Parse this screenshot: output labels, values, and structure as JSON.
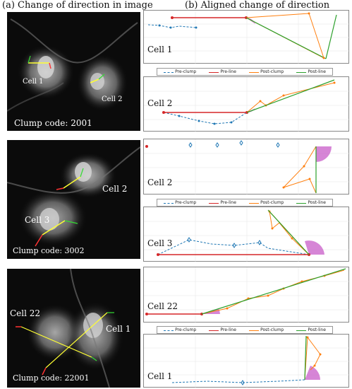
{
  "header": {
    "left": "(a) Change of direction in image",
    "right": "(b) Aligned change of direction"
  },
  "panels": [
    {
      "clump_code": "Clump code: 2001",
      "cell_labels": [
        "Cell 1",
        "Cell 2"
      ],
      "plots": [
        {
          "label": "Cell 1"
        },
        {
          "label": "Cell 2"
        }
      ]
    },
    {
      "clump_code": "Clump code: 3002",
      "cell_labels": [
        "Cell 2",
        "Cell 3"
      ],
      "plots": [
        {
          "label": "Cell 2"
        },
        {
          "label": "Cell 3"
        }
      ]
    },
    {
      "clump_code": "Clump code: 22001",
      "cell_labels": [
        "Cell 22",
        "Cell 1"
      ],
      "plots": [
        {
          "label": "Cell 22"
        },
        {
          "label": "Cell 1"
        }
      ]
    }
  ],
  "legend": {
    "items": [
      "Pre-clump",
      "Pre-line",
      "Post-clump",
      "Post-line"
    ]
  },
  "colors": {
    "pre_clump": "#1f77b4",
    "pre_line": "#d62728",
    "post_clump": "#ff7f0e",
    "post_line": "#2ca02c",
    "angle_fill": "#cc66cc"
  }
}
